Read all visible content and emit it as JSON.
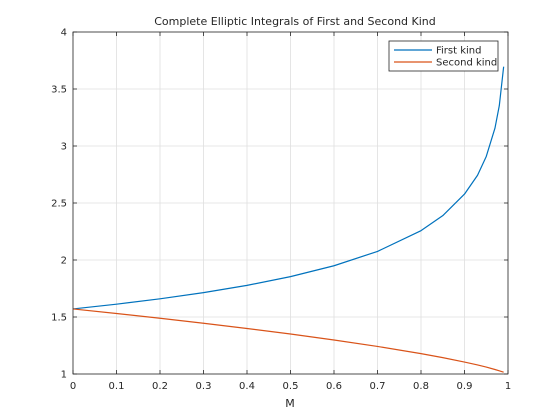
{
  "chart_data": {
    "type": "line",
    "title": "Complete Elliptic Integrals of First and Second Kind",
    "xlabel": "M",
    "ylabel": "",
    "xlim": [
      0,
      1
    ],
    "ylim": [
      1,
      4
    ],
    "xticks": [
      0,
      0.1,
      0.2,
      0.3,
      0.4,
      0.5,
      0.6,
      0.7,
      0.8,
      0.9,
      1
    ],
    "yticks": [
      1,
      1.5,
      2,
      2.5,
      3,
      3.5,
      4
    ],
    "grid": true,
    "legend": {
      "placement": "top-right"
    },
    "series": [
      {
        "name": "First kind",
        "color": "#0072BD",
        "x": [
          0,
          0.1,
          0.2,
          0.3,
          0.4,
          0.5,
          0.6,
          0.7,
          0.8,
          0.85,
          0.9,
          0.93,
          0.95,
          0.97,
          0.98,
          0.99
        ],
        "y": [
          1.5708,
          1.6124,
          1.6596,
          1.7139,
          1.7775,
          1.8541,
          1.9496,
          2.0754,
          2.2572,
          2.389,
          2.5781,
          2.7433,
          2.9083,
          3.1559,
          3.3541,
          3.6956
        ]
      },
      {
        "name": "Second kind",
        "color": "#D95319",
        "x": [
          0,
          0.1,
          0.2,
          0.3,
          0.4,
          0.5,
          0.6,
          0.7,
          0.8,
          0.85,
          0.9,
          0.93,
          0.95,
          0.97,
          0.98,
          0.99
        ],
        "y": [
          1.5708,
          1.5307,
          1.489,
          1.4454,
          1.3994,
          1.3506,
          1.2984,
          1.2417,
          1.1785,
          1.1434,
          1.1048,
          1.0794,
          1.0605,
          1.0396,
          1.0281,
          1.016
        ]
      }
    ]
  }
}
